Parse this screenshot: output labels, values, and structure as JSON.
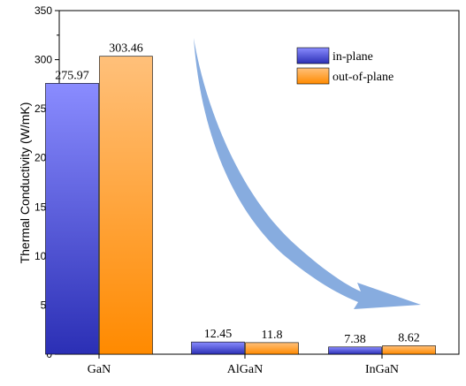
{
  "chart_data": {
    "type": "bar",
    "categories": [
      "GaN",
      "AlGaN",
      "InGaN"
    ],
    "series": [
      {
        "name": "in-plane",
        "values": [
          275.97,
          12.45,
          7.38
        ],
        "labels": [
          "275.97",
          "12.45",
          "7.38"
        ],
        "color_top": "#8a8cff",
        "color_bottom": "#2b2fb5"
      },
      {
        "name": "out-of-plane",
        "values": [
          303.46,
          11.8,
          8.62
        ],
        "labels": [
          "303.46",
          "11.8",
          "8.62"
        ],
        "color_top": "#ffc07a",
        "color_bottom": "#ff8a00"
      }
    ],
    "ylabel": "Thermal Conductivity (W/mK)",
    "xlabel": "",
    "ylim": [
      0,
      350
    ],
    "yticks": [
      0,
      50,
      100,
      150,
      200,
      250,
      300,
      350
    ],
    "legend_position": "top-right",
    "annotation": {
      "type": "curved-arrow",
      "color": "#7aa3db",
      "description": "trend arrow from GaN down to InGaN"
    }
  }
}
